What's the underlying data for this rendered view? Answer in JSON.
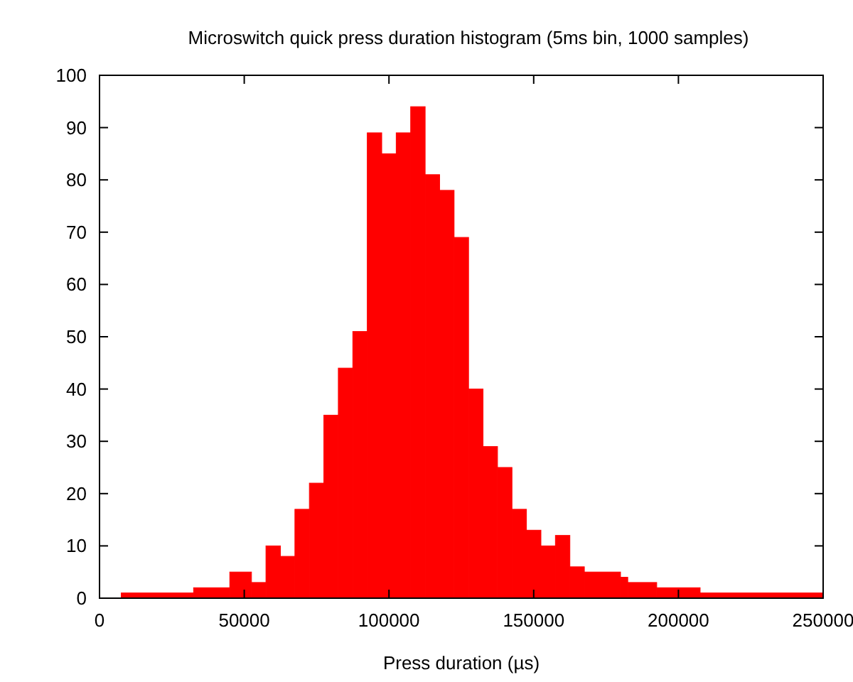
{
  "chart_data": {
    "type": "histogram",
    "title": "Microswitch quick press duration histogram (5ms bin, 1000 samples)",
    "xlabel": "Press duration (µs)",
    "bins": [
      7500,
      32500,
      45000,
      52500,
      57500,
      62500,
      67500,
      72500,
      77500,
      82500,
      87500,
      92500,
      97500,
      102500,
      107500,
      112500,
      117500,
      122500,
      127500,
      132500,
      137500,
      142500,
      147500,
      152500,
      157500,
      162500,
      167500,
      180000,
      182500,
      192500,
      207500,
      250000
    ],
    "values": [
      1,
      2,
      5,
      3,
      10,
      8,
      17,
      22,
      35,
      44,
      51,
      89,
      85,
      89,
      94,
      81,
      78,
      69,
      40,
      29,
      25,
      17,
      13,
      10,
      12,
      6,
      5,
      4,
      3,
      2,
      1
    ],
    "color": "#ff0000",
    "xlim": [
      0,
      250000
    ],
    "xticks": [
      0,
      50000,
      100000,
      150000,
      200000,
      250000
    ],
    "ylim": [
      0,
      100
    ],
    "yticks": [
      0,
      10,
      20,
      30,
      40,
      50,
      60,
      70,
      80,
      90,
      100
    ],
    "tick_labels": true
  }
}
